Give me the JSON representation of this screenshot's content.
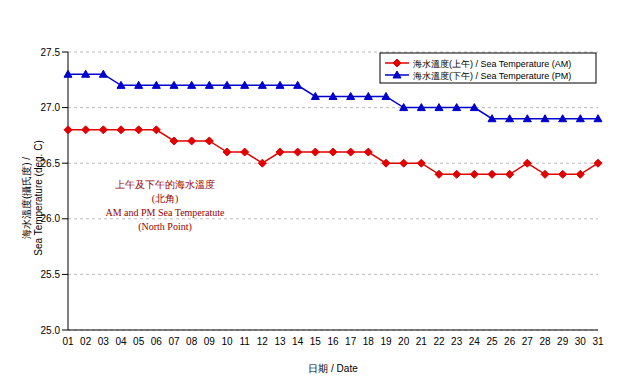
{
  "chart_data": {
    "type": "line",
    "x_label": "日期 / Date",
    "y_label": [
      "海水溫度(攝氏度) /",
      "Sea Temperature (deg. C)"
    ],
    "annotation": [
      "上午及下午的海水溫度",
      "(北角)",
      "AM and PM Sea Temperatute",
      "(North Point)"
    ],
    "categories": [
      "01",
      "02",
      "03",
      "04",
      "05",
      "06",
      "07",
      "08",
      "09",
      "10",
      "11",
      "12",
      "13",
      "14",
      "15",
      "16",
      "17",
      "18",
      "19",
      "20",
      "21",
      "22",
      "23",
      "24",
      "25",
      "26",
      "27",
      "28",
      "29",
      "30",
      "31"
    ],
    "series": [
      {
        "name": "海水溫度(上午) / Sea Temperature (AM)",
        "color": "#e00000",
        "marker": "diamond",
        "values": [
          26.8,
          26.8,
          26.8,
          26.8,
          26.8,
          26.8,
          26.7,
          26.7,
          26.7,
          26.6,
          26.6,
          26.5,
          26.6,
          26.6,
          26.6,
          26.6,
          26.6,
          26.6,
          26.5,
          26.5,
          26.5,
          26.4,
          26.4,
          26.4,
          26.4,
          26.4,
          26.5,
          26.4,
          26.4,
          26.4,
          26.5
        ]
      },
      {
        "name": "海水溫度(下午) / Sea Temperature (PM)",
        "color": "#0000cc",
        "marker": "triangle",
        "values": [
          27.3,
          27.3,
          27.3,
          27.2,
          27.2,
          27.2,
          27.2,
          27.2,
          27.2,
          27.2,
          27.2,
          27.2,
          27.2,
          27.2,
          27.1,
          27.1,
          27.1,
          27.1,
          27.1,
          27.0,
          27.0,
          27.0,
          27.0,
          27.0,
          26.9,
          26.9,
          26.9,
          26.9,
          26.9,
          26.9,
          26.9
        ]
      }
    ],
    "ylim": [
      25,
      27.5
    ],
    "yticks": [
      {
        "value": 25,
        "label": "25.0"
      },
      25.5,
      {
        "value": 26,
        "label": "26.0"
      },
      26.5,
      {
        "value": 27,
        "label": "27.0"
      },
      27.5
    ],
    "grid": true,
    "legend": "upper right"
  }
}
